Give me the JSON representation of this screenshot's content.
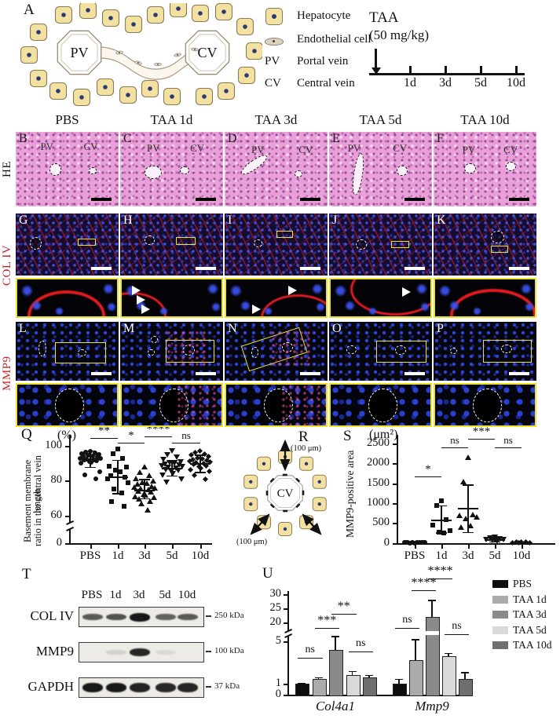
{
  "panelA": {
    "letter": "A",
    "schematic": {
      "pv": "PV",
      "cv": "CV"
    },
    "legend": [
      {
        "icon": "hepatocyte-icon",
        "label": "Hepatocyte"
      },
      {
        "icon": "endothelial-cell-icon",
        "label": "Endothelial cell"
      },
      {
        "abbr": "PV",
        "label": "Portal vein"
      },
      {
        "abbr": "CV",
        "label": "Central vein"
      }
    ],
    "timeline": {
      "drug": "TAA",
      "dose": "(50 mg/kg)",
      "ticks": [
        "1d",
        "3d",
        "5d",
        "10d"
      ]
    }
  },
  "columns": [
    "PBS",
    "TAA 1d",
    "TAA 3d",
    "TAA 5d",
    "TAA 10d"
  ],
  "micro_rows": {
    "he": {
      "label": "HE",
      "panels": [
        {
          "letter": "B",
          "pv": "PV",
          "cv": "CV"
        },
        {
          "letter": "C",
          "pv": "PV",
          "cv": "CV"
        },
        {
          "letter": "D",
          "pv": "PV",
          "cv": "CV"
        },
        {
          "letter": "E",
          "pv": "PV",
          "cv": "CV"
        },
        {
          "letter": "F",
          "pv": "PV",
          "cv": "CV"
        }
      ]
    },
    "coliv": {
      "label": "COL IV",
      "panels": [
        {
          "letter": "G",
          "arrowheads": 0
        },
        {
          "letter": "H",
          "arrowheads": 3
        },
        {
          "letter": "I",
          "arrowheads": 2
        },
        {
          "letter": "J",
          "arrowheads": 1
        },
        {
          "letter": "K",
          "arrowheads": 0
        }
      ]
    },
    "mmp9": {
      "label": "MMP9",
      "panels": [
        {
          "letter": "L",
          "speckles": false
        },
        {
          "letter": "M",
          "speckles": true
        },
        {
          "letter": "N",
          "speckles": true
        },
        {
          "letter": "O",
          "speckles": false
        },
        {
          "letter": "P",
          "speckles": false
        }
      ]
    }
  },
  "panelR": {
    "letter": "R",
    "cv": "CV",
    "arrow_label_top": "(100 μm)",
    "arrow_label_bottom": "(100 μm)"
  },
  "panelT": {
    "letter": "T",
    "lanes": [
      "PBS",
      "1d",
      "3d",
      "5d",
      "10d"
    ],
    "blots": [
      {
        "name": "COL IV",
        "marker": "250 kDa",
        "bands": [
          0.55,
          0.6,
          1,
          0.5,
          0.55
        ]
      },
      {
        "name": "MMP9",
        "marker": "100 kDa",
        "bands": [
          0,
          0.06,
          0.9,
          0.04,
          0
        ]
      },
      {
        "name": "GAPDH",
        "marker": "37 kDa",
        "bands": [
          1,
          1,
          0.92,
          0.88,
          0.9
        ]
      }
    ]
  },
  "chart_data": [
    {
      "id": "Q",
      "type": "scatter",
      "panel_letter": "Q",
      "unit_label": "(%)",
      "ylabel_line1": "Basement membrane length",
      "ylabel_line2": "ratio in the central vein",
      "categories": [
        "PBS",
        "1d",
        "3d",
        "5d",
        "10d"
      ],
      "yticks": [
        0,
        60,
        80,
        100
      ],
      "axis_break": true,
      "ylim": [
        60,
        100
      ],
      "series": [
        {
          "category": "PBS",
          "marker": "circle",
          "mean": 93,
          "sd_low": 88,
          "sd_high": 97.5,
          "values": [
            97,
            96.5,
            96,
            95.5,
            95,
            94.5,
            94,
            94,
            93.5,
            93,
            93,
            92.5,
            92,
            92,
            91.5,
            91,
            90.5,
            90,
            85,
            83.5,
            81
          ]
        },
        {
          "category": "1d",
          "marker": "square",
          "mean": 82.5,
          "sd_low": 73,
          "sd_high": 92,
          "values": [
            98,
            95.5,
            93,
            88.5,
            88,
            86,
            85,
            83,
            82,
            81,
            79,
            75.5,
            73,
            68,
            65.5
          ]
        },
        {
          "category": "3d",
          "marker": "triangle-up",
          "mean": 75,
          "sd_low": 70,
          "sd_high": 81,
          "values": [
            88,
            85,
            83,
            81.5,
            80,
            79,
            78.5,
            78,
            77,
            76.5,
            76,
            75.5,
            75,
            74,
            73.5,
            72.5,
            72,
            71,
            70.5,
            69.5,
            68.5,
            67,
            63.5
          ]
        },
        {
          "category": "5d",
          "marker": "triangle-down",
          "mean": 87.5,
          "sd_low": 83,
          "sd_high": 92,
          "values": [
            97,
            95,
            93.5,
            92,
            91,
            90.5,
            90,
            89.5,
            89,
            88.5,
            88,
            87.5,
            87,
            86.5,
            86,
            85.5,
            84,
            83,
            81,
            79
          ]
        },
        {
          "category": "10d",
          "marker": "diamond",
          "mean": 90,
          "sd_low": 85,
          "sd_high": 95,
          "values": [
            97,
            96,
            95,
            94.5,
            93.5,
            93,
            92.5,
            92,
            91.5,
            91,
            90.5,
            90,
            89.5,
            89,
            88.5,
            88,
            87,
            86,
            85,
            83,
            80.5
          ]
        }
      ],
      "significance": [
        {
          "from": "PBS",
          "to": "1d",
          "label": "**"
        },
        {
          "from": "1d",
          "to": "3d",
          "label": "*"
        },
        {
          "from": "3d",
          "to": "5d",
          "label": "****"
        },
        {
          "from": "5d",
          "to": "10d",
          "label": "ns"
        }
      ]
    },
    {
      "id": "S",
      "type": "scatter",
      "panel_letter": "S",
      "unit_label": "(μm²)",
      "ylabel": "MMP9-positive area",
      "categories": [
        "PBS",
        "1d",
        "3d",
        "5d",
        "10d"
      ],
      "yticks": [
        0,
        500,
        1000,
        1500,
        2000,
        2500
      ],
      "axis_break": false,
      "ylim": [
        0,
        2500
      ],
      "series": [
        {
          "category": "PBS",
          "marker": "circle",
          "mean": 15,
          "sd_low": 5,
          "sd_high": 30,
          "values": [
            5,
            8,
            10,
            12,
            15,
            18,
            20,
            22,
            25,
            12,
            16
          ]
        },
        {
          "category": "1d",
          "marker": "square",
          "mean": 590,
          "sd_low": 270,
          "sd_high": 945,
          "values": [
            1060,
            950,
            590,
            450,
            310,
            280,
            255
          ]
        },
        {
          "category": "3d",
          "marker": "triangle-up",
          "mean": 880,
          "sd_low": 285,
          "sd_high": 1470,
          "values": [
            2150,
            1555,
            710,
            700,
            655,
            620,
            450,
            405
          ]
        },
        {
          "category": "5d",
          "marker": "triangle-down",
          "mean": 95,
          "sd_low": 45,
          "sd_high": 150,
          "values": [
            150,
            125,
            105,
            95,
            85,
            65,
            50
          ]
        },
        {
          "category": "10d",
          "marker": "diamond",
          "mean": 9,
          "sd_low": 2,
          "sd_high": 18,
          "values": [
            15,
            12,
            10,
            8,
            6,
            5
          ]
        }
      ],
      "significance": [
        {
          "from": "PBS",
          "to": "1d",
          "label": "*"
        },
        {
          "from": "1d",
          "to": "3d",
          "label": "ns"
        },
        {
          "from": "3d",
          "to": "5d",
          "label": "***"
        },
        {
          "from": "5d",
          "to": "10d",
          "label": "ns"
        }
      ]
    },
    {
      "id": "U",
      "type": "bar",
      "panel_letter": "U",
      "groups": [
        "Col4a1",
        "Mmp9"
      ],
      "yticks_lower": [
        0,
        1,
        5
      ],
      "yticks_upper": [
        20,
        25,
        30
      ],
      "axis_break": true,
      "series": [
        {
          "name": "PBS",
          "color": "#0d0d0d",
          "values": [
            1.0,
            1.0
          ],
          "errors": [
            0.08,
            0.5
          ]
        },
        {
          "name": "TAA 1d",
          "color": "#ababab",
          "values": [
            1.5,
            3.2
          ],
          "errors": [
            0.12,
            2.0
          ]
        },
        {
          "name": "TAA 3d",
          "color": "#8a8a8a",
          "values": [
            4.2,
            22
          ],
          "errors": [
            1.3,
            6
          ]
        },
        {
          "name": "TAA 5d",
          "color": "#d9d9d9",
          "values": [
            1.85,
            3.6
          ],
          "errors": [
            0.35,
            0.3
          ]
        },
        {
          "name": "TAA 10d",
          "color": "#6f6f6f",
          "values": [
            1.6,
            1.5
          ],
          "errors": [
            0.25,
            0.6
          ]
        }
      ],
      "significance": [
        {
          "group": "Col4a1",
          "from": "PBS",
          "to": "TAA 1d",
          "label": "ns"
        },
        {
          "group": "Col4a1",
          "from": "TAA 1d",
          "to": "TAA 3d",
          "label": "***"
        },
        {
          "group": "Col4a1",
          "from": "TAA 3d",
          "to": "TAA 5d",
          "label": "**"
        },
        {
          "group": "Col4a1",
          "from": "TAA 5d",
          "to": "TAA 10d",
          "label": "ns"
        },
        {
          "group": "Mmp9",
          "from": "PBS",
          "to": "TAA 1d",
          "label": "ns"
        },
        {
          "group": "Mmp9",
          "from": "TAA 1d",
          "to": "TAA 3d",
          "label": "****"
        },
        {
          "group": "Mmp9",
          "from": "TAA 3d",
          "to": "TAA 5d",
          "label": "****"
        },
        {
          "group": "Mmp9",
          "from": "TAA 5d",
          "to": "TAA 10d",
          "label": "ns"
        }
      ],
      "legend": [
        "PBS",
        "TAA 1d",
        "TAA 3d",
        "TAA 5d",
        "TAA 10d"
      ]
    }
  ]
}
